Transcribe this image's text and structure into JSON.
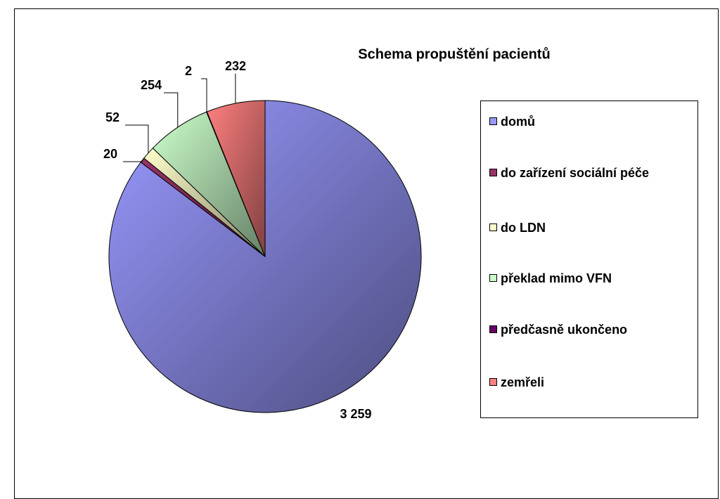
{
  "chart_data": {
    "type": "pie",
    "title": "Schema propuštění pacientů",
    "categories": [
      "domů",
      "do zařízení sociální péče",
      "do LDN",
      "překlad mimo VFN",
      "předčasně ukončeno",
      "zemřeli"
    ],
    "values": [
      3259,
      20,
      52,
      254,
      2,
      232
    ],
    "value_labels": [
      "3 259",
      "20",
      "52",
      "254",
      "2",
      "232"
    ],
    "colors": [
      "#9999ff",
      "#993366",
      "#ffffcc",
      "#ccffcc",
      "#660066",
      "#ff8080"
    ],
    "legend": "right"
  }
}
